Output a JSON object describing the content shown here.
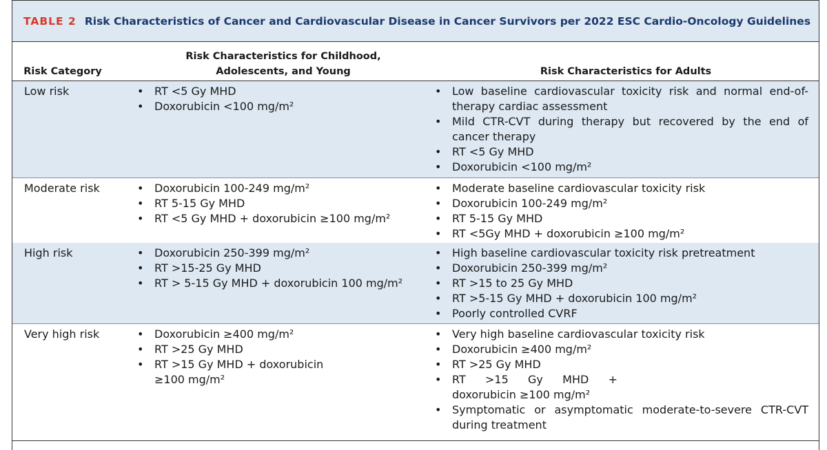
{
  "title": {
    "label": "TABLE 2",
    "text": "Risk Characteristics of Cancer and Cardiovascular Disease in Cancer Survivors per 2022 ESC Cardio-Oncology Guidelines"
  },
  "headers": {
    "category": "Risk Category",
    "childhood_line1": "Risk Characteristics for Childhood,",
    "childhood_line2": "Adolescents, and Young",
    "adults": "Risk Characteristics for Adults"
  },
  "rows": [
    {
      "category": "Low risk",
      "childhood": [
        "RT <5 Gy MHD",
        "Doxorubicin <100 mg/m²"
      ],
      "adults": [
        "Low baseline cardiovascular toxicity risk and normal end-of-therapy cardiac assessment",
        "Mild CTR-CVT during therapy but recovered by the end of cancer therapy",
        "RT <5 Gy MHD",
        "Doxorubicin <100 mg/m²"
      ]
    },
    {
      "category": "Moderate risk",
      "childhood": [
        "Doxorubicin 100-249 mg/m²",
        "RT 5-15 Gy MHD",
        "RT <5 Gy MHD + doxorubicin ≥100 mg/m²"
      ],
      "adults": [
        "Moderate baseline cardiovascular toxicity risk",
        "Doxorubicin 100-249 mg/m²",
        "RT 5-15 Gy MHD",
        "RT <5Gy MHD + doxorubicin ≥100 mg/m²"
      ]
    },
    {
      "category": "High risk",
      "childhood": [
        "Doxorubicin 250-399 mg/m²",
        "RT >15-25 Gy MHD",
        "RT > 5-15 Gy MHD + doxorubicin 100 mg/m²"
      ],
      "adults": [
        "High baseline cardiovascular toxicity risk pretreatment",
        "Doxorubicin 250-399 mg/m²",
        "RT >15 to 25 Gy MHD",
        "RT >5-15 Gy MHD + doxorubicin 100 mg/m²",
        "Poorly controlled CVRF"
      ]
    },
    {
      "category": "Very high risk",
      "childhood": [
        "Doxorubicin ≥400 mg/m²",
        "RT >25 Gy MHD",
        "RT >15 Gy MHD + doxorubicin ≥100 mg/m²"
      ],
      "adults": [
        "Very high baseline cardiovascular toxicity risk",
        "Doxorubicin ≥400 mg/m²",
        "RT >25 Gy MHD",
        "RT >15 Gy MHD + doxorubicin ≥100 mg/m²",
        "Symptomatic or asymptomatic moderate-to-severe CTR-CVT during treatment"
      ]
    }
  ],
  "colors": {
    "title_label": "#d63a2c",
    "title_text": "#1a3a6b",
    "shaded_row": "#dde8f3"
  }
}
